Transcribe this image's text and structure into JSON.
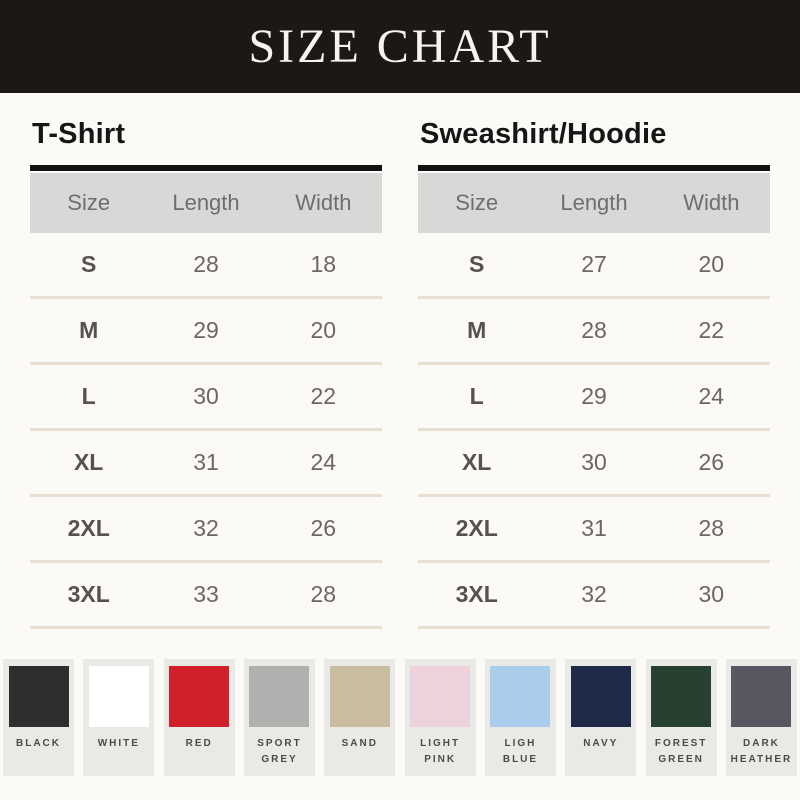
{
  "header": {
    "title": "SIZE CHART"
  },
  "chart_data": [
    {
      "type": "table",
      "title": "T-Shirt",
      "columns": [
        "Size",
        "Length",
        "Width"
      ],
      "rows": [
        [
          "S",
          "28",
          "18"
        ],
        [
          "M",
          "29",
          "20"
        ],
        [
          "L",
          "30",
          "22"
        ],
        [
          "XL",
          "31",
          "24"
        ],
        [
          "2XL",
          "32",
          "26"
        ],
        [
          "3XL",
          "33",
          "28"
        ]
      ]
    },
    {
      "type": "table",
      "title": "Sweashirt/Hoodie",
      "columns": [
        "Size",
        "Length",
        "Width"
      ],
      "rows": [
        [
          "S",
          "27",
          "20"
        ],
        [
          "M",
          "28",
          "22"
        ],
        [
          "L",
          "29",
          "24"
        ],
        [
          "XL",
          "30",
          "26"
        ],
        [
          "2XL",
          "31",
          "28"
        ],
        [
          "3XL",
          "32",
          "30"
        ]
      ]
    }
  ],
  "swatches": [
    {
      "name": "BLACK",
      "color": "#2f2d2d"
    },
    {
      "name": "WHITE",
      "color": "#ffffff"
    },
    {
      "name": "RED",
      "color": "#d2202a"
    },
    {
      "name": "SPORT GREY",
      "color": "#b2afaf"
    },
    {
      "name": "SAND",
      "color": "#c9bca1"
    },
    {
      "name": "LIGHT PINK",
      "color": "#edd2de"
    },
    {
      "name": "LIGH BLUE",
      "color": "#a9cdeb"
    },
    {
      "name": "NAVY",
      "color": "#1e2a47"
    },
    {
      "name": "FOREST GREEN",
      "color": "#28402f"
    },
    {
      "name": "DARK HEATHER",
      "color": "#5a5762"
    }
  ],
  "colors": {
    "banner_bg": "#1b1815",
    "page_bg": "#fbfaf7",
    "table_border": "#121212",
    "table_header_bg": "#d9d8d6",
    "row_divider": "#e7e0d2",
    "swatch_card_bg": "#e9e9e6"
  }
}
